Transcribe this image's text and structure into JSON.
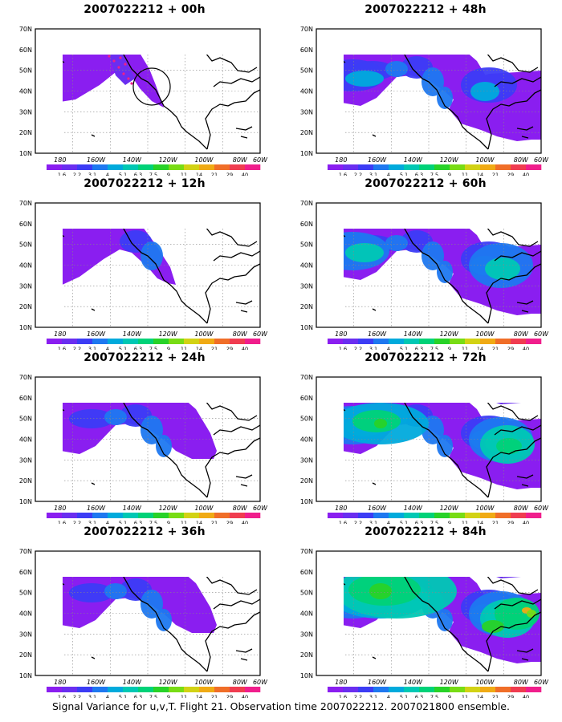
{
  "caption": "Signal Variance for u,v,T. Flight 21. Observation time 2007022212. 2007021800 ensemble.",
  "axes": {
    "lat_labels": [
      "70N",
      "60N",
      "50N",
      "40N",
      "30N",
      "20N",
      "10N"
    ],
    "lon_labels": [
      "180",
      "160W",
      "140W",
      "120W",
      "100W",
      "80W",
      "60W"
    ]
  },
  "colorbar": {
    "labels": [
      "1.6",
      "2.2",
      "3.1",
      "4",
      "5.1",
      "6.3",
      "7.5",
      "9",
      "11",
      "14",
      "21",
      "29",
      "40"
    ],
    "colors": [
      "#8a1ef0",
      "#6a2ef0",
      "#3c3cf5",
      "#1e78f0",
      "#00aadc",
      "#00c8b4",
      "#00d278",
      "#28d228",
      "#78dc14",
      "#d2d214",
      "#f0aa14",
      "#f06e28",
      "#f03c50",
      "#f01e8c"
    ]
  },
  "panels": [
    {
      "title": "2007022212 + 00h",
      "col": 0,
      "row": 0,
      "level": 0,
      "observation_circle": true
    },
    {
      "title": "2007022212 + 48h",
      "col": 1,
      "row": 0,
      "level": 3,
      "observation_circle": false
    },
    {
      "title": "2007022212 + 12h",
      "col": 0,
      "row": 1,
      "level": 1,
      "observation_circle": false
    },
    {
      "title": "2007022212 + 60h",
      "col": 1,
      "row": 1,
      "level": 4,
      "observation_circle": false
    },
    {
      "title": "2007022212 + 24h",
      "col": 0,
      "row": 2,
      "level": 2,
      "observation_circle": false
    },
    {
      "title": "2007022212 + 72h",
      "col": 1,
      "row": 2,
      "level": 5,
      "observation_circle": false
    },
    {
      "title": "2007022212 + 36h",
      "col": 0,
      "row": 3,
      "level": 2,
      "observation_circle": false
    },
    {
      "title": "2007022212 + 84h",
      "col": 1,
      "row": 3,
      "level": 6,
      "observation_circle": false
    }
  ]
}
